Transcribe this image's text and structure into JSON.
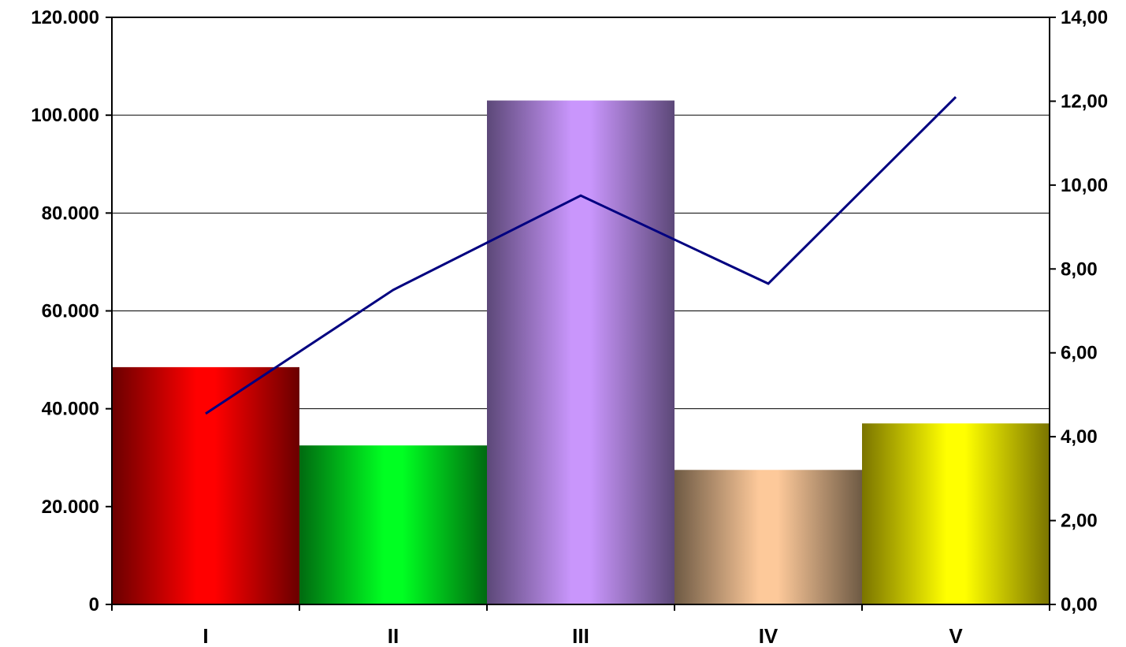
{
  "chart_data": {
    "type": "bar",
    "title": "",
    "xlabel": "",
    "ylabel": "",
    "y2label": "",
    "categories": [
      "I",
      "II",
      "III",
      "IV",
      "V"
    ],
    "ylim": [
      0,
      120000
    ],
    "y2lim": [
      0,
      14
    ],
    "y_ticks": [
      {
        "value": 0,
        "label": "0"
      },
      {
        "value": 20000,
        "label": "20.000"
      },
      {
        "value": 40000,
        "label": "40.000"
      },
      {
        "value": 60000,
        "label": "60.000"
      },
      {
        "value": 80000,
        "label": "80.000"
      },
      {
        "value": 100000,
        "label": "100.000"
      },
      {
        "value": 120000,
        "label": "120.000"
      }
    ],
    "y2_ticks": [
      {
        "value": 0,
        "label": "0,00"
      },
      {
        "value": 2,
        "label": "2,00"
      },
      {
        "value": 4,
        "label": "4,00"
      },
      {
        "value": 6,
        "label": "6,00"
      },
      {
        "value": 8,
        "label": "8,00"
      },
      {
        "value": 10,
        "label": "10,00"
      },
      {
        "value": 12,
        "label": "12,00"
      },
      {
        "value": 14,
        "label": "14,00"
      }
    ],
    "grid": true,
    "legend": "none",
    "series": [
      {
        "type": "bar",
        "axis": "left",
        "values": [
          48500,
          32500,
          103000,
          27500,
          37000
        ],
        "colors": [
          {
            "base": "#ff0000",
            "dark": "#6a0000"
          },
          {
            "base": "#00ff22",
            "dark": "#006a10"
          },
          {
            "base": "#c996fc",
            "dark": "#5c4878"
          },
          {
            "base": "#fdc99a",
            "dark": "#6e5a44"
          },
          {
            "base": "#ffff00",
            "dark": "#7a7400"
          }
        ]
      },
      {
        "type": "line",
        "axis": "right",
        "values": [
          4.55,
          7.5,
          9.75,
          7.65,
          12.1
        ],
        "color": "#000080"
      }
    ]
  }
}
